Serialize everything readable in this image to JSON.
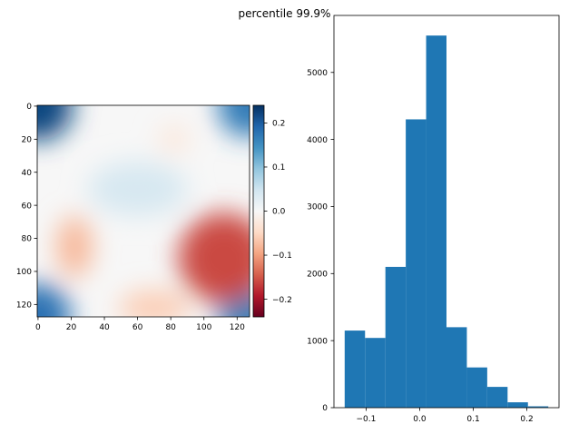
{
  "figure": {
    "suptitle": "percentile 99.9%"
  },
  "colors": {
    "bar_fill": "#1f77b4",
    "colormap": "RdBu",
    "colormap_stops": [
      "#67001f",
      "#b2182b",
      "#d6604d",
      "#f4a582",
      "#fddbc7",
      "#f7f7f7",
      "#d1e5f0",
      "#92c5de",
      "#4393c3",
      "#2166ac",
      "#053061"
    ]
  },
  "chart_data": [
    {
      "type": "heatmap",
      "title": "",
      "xlabel": "",
      "ylabel": "",
      "grid_size": [
        128,
        128
      ],
      "xlim": [
        0,
        127
      ],
      "ylim": [
        127,
        0
      ],
      "x_ticks": [
        0,
        20,
        40,
        60,
        80,
        100,
        120
      ],
      "y_ticks": [
        0,
        20,
        40,
        60,
        80,
        100,
        120
      ],
      "colorbar": {
        "vmin": -0.24,
        "vmax": 0.24,
        "ticks": [
          -0.2,
          -0.1,
          0.0,
          0.1,
          0.2
        ],
        "tick_labels": [
          "−0.2",
          "−0.1",
          "0.0",
          "0.1",
          "0.2"
        ]
      },
      "features": [
        {
          "desc": "positive corners",
          "x": 0,
          "y": 0,
          "value": 0.22
        },
        {
          "desc": "positive corners",
          "x": 127,
          "y": 0,
          "value": 0.17
        },
        {
          "desc": "positive corners",
          "x": 0,
          "y": 127,
          "value": 0.18
        },
        {
          "desc": "positive corners",
          "x": 127,
          "y": 127,
          "value": 0.16
        },
        {
          "desc": "negative region",
          "x": 112,
          "y": 92,
          "value": -0.16
        },
        {
          "desc": "negative region",
          "x": 22,
          "y": 85,
          "value": -0.08
        },
        {
          "desc": "negative region",
          "x": 70,
          "y": 122,
          "value": -0.06
        },
        {
          "desc": "negative region",
          "x": 82,
          "y": 20,
          "value": -0.03
        },
        {
          "desc": "positive center",
          "x": 60,
          "y": 50,
          "value": 0.04
        }
      ]
    },
    {
      "type": "bar",
      "subtype": "histogram",
      "title": "",
      "xlabel": "",
      "ylabel": "",
      "bin_edges": [
        -0.14,
        -0.102,
        -0.064,
        -0.026,
        0.012,
        0.05,
        0.088,
        0.126,
        0.164,
        0.202,
        0.24
      ],
      "values": [
        1150,
        1040,
        2100,
        4300,
        5550,
        1200,
        600,
        310,
        80,
        20
      ],
      "xlim": [
        -0.16,
        0.26
      ],
      "ylim": [
        0,
        5850
      ],
      "x_ticks": [
        -0.1,
        0.0,
        0.1,
        0.2
      ],
      "x_tick_labels": [
        "−0.1",
        "0.0",
        "0.1",
        "0.2"
      ],
      "y_ticks": [
        0,
        1000,
        2000,
        3000,
        4000,
        5000
      ],
      "y_tick_labels": [
        "0",
        "1000",
        "2000",
        "3000",
        "4000",
        "5000"
      ]
    }
  ]
}
